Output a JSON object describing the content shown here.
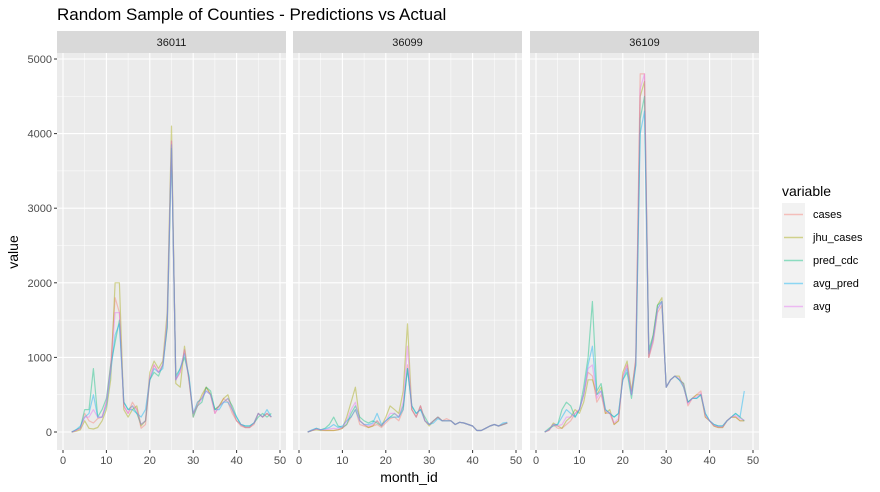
{
  "chart_data": {
    "type": "line",
    "title": "Random Sample of Counties - Predictions vs Actual",
    "xlabel": "month_id",
    "ylabel": "value",
    "xlim": [
      0,
      50
    ],
    "ylim": [
      0,
      5000
    ],
    "x_ticks": [
      "0",
      "10",
      "20",
      "30",
      "40",
      "50"
    ],
    "y_ticks": [
      "0",
      "1000",
      "2000",
      "3000",
      "4000",
      "5000"
    ],
    "x_tick_values": [
      0,
      10,
      20,
      30,
      40,
      50
    ],
    "y_tick_values": [
      0,
      1000,
      2000,
      3000,
      4000,
      5000
    ],
    "grid": true,
    "legend_position": "right",
    "legend_title": "variable",
    "series_styles": [
      {
        "name": "cases",
        "color": "#F8766D"
      },
      {
        "name": "jhu_cases",
        "color": "#A3A500"
      },
      {
        "name": "pred_cdc",
        "color": "#00BF7D"
      },
      {
        "name": "avg_pred",
        "color": "#00B0F6"
      },
      {
        "name": "avg",
        "color": "#E76BF3"
      }
    ],
    "panels": [
      {
        "label": "36011",
        "x": [
          2,
          3,
          4,
          5,
          6,
          7,
          8,
          9,
          10,
          11,
          12,
          13,
          14,
          15,
          16,
          17,
          18,
          19,
          20,
          21,
          22,
          23,
          24,
          25,
          26,
          27,
          28,
          29,
          30,
          31,
          32,
          33,
          34,
          35,
          36,
          37,
          38,
          39,
          40,
          41,
          42,
          43,
          44,
          45,
          46,
          47,
          48
        ],
        "series": [
          {
            "name": "cases",
            "values": [
              0,
              20,
              50,
              250,
              150,
              120,
              180,
              200,
              400,
              900,
              1800,
              1600,
              350,
              250,
              400,
              300,
              50,
              100,
              700,
              900,
              800,
              900,
              1400,
              3900,
              700,
              800,
              1100,
              700,
              200,
              400,
              450,
              600,
              500,
              250,
              350,
              450,
              400,
              250,
              150,
              80,
              60,
              60,
              100,
              250,
              200,
              250,
              200
            ]
          },
          {
            "name": "jhu_cases",
            "values": [
              0,
              10,
              30,
              150,
              50,
              40,
              60,
              150,
              300,
              700,
              2000,
              2000,
              300,
              200,
              300,
              350,
              80,
              150,
              800,
              950,
              850,
              950,
              1600,
              4100,
              650,
              600,
              1150,
              700,
              250,
              350,
              500,
              600,
              500,
              300,
              350,
              450,
              500,
              300,
              150,
              100,
              60,
              60,
              120,
              250,
              200,
              250,
              200
            ]
          },
          {
            "name": "pred_cdc",
            "values": [
              0,
              30,
              60,
              300,
              300,
              850,
              200,
              300,
              450,
              900,
              1200,
              1500,
              400,
              300,
              350,
              250,
              100,
              150,
              700,
              800,
              750,
              900,
              1400,
              3800,
              750,
              850,
              1000,
              750,
              200,
              350,
              400,
              600,
              550,
              300,
              350,
              400,
              450,
              350,
              200,
              100,
              80,
              80,
              120,
              200,
              250,
              200,
              250
            ]
          },
          {
            "name": "avg_pred",
            "values": [
              0,
              30,
              80,
              200,
              250,
              500,
              200,
              200,
              350,
              800,
              1300,
              1450,
              400,
              300,
              300,
              250,
              200,
              300,
              700,
              850,
              800,
              850,
              1450,
              3850,
              700,
              850,
              1050,
              750,
              250,
              400,
              450,
              550,
              500,
              300,
              300,
              400,
              400,
              300,
              200,
              100,
              80,
              80,
              120,
              250,
              200,
              300,
              200
            ]
          },
          {
            "name": "avg",
            "values": [
              0,
              20,
              50,
              200,
              200,
              300,
              200,
              200,
              400,
              850,
              1600,
              1600,
              350,
              250,
              350,
              300,
              100,
              150,
              750,
              900,
              800,
              900,
              1500,
              3900,
              700,
              800,
              1100,
              700,
              250,
              350,
              450,
              550,
              500,
              250,
              350,
              400,
              450,
              300,
              150,
              100,
              60,
              60,
              120,
              250,
              200,
              250,
              200
            ]
          }
        ]
      },
      {
        "label": "36099",
        "x": [
          2,
          3,
          4,
          5,
          6,
          7,
          8,
          9,
          10,
          11,
          12,
          13,
          14,
          15,
          16,
          17,
          18,
          19,
          20,
          21,
          22,
          23,
          24,
          25,
          26,
          27,
          28,
          29,
          30,
          31,
          32,
          33,
          34,
          35,
          36,
          37,
          38,
          39,
          40,
          41,
          42,
          43,
          44,
          45,
          46,
          47,
          48
        ],
        "series": [
          {
            "name": "cases",
            "values": [
              0,
              20,
              40,
              30,
              20,
              20,
              20,
              30,
              50,
              100,
              200,
              300,
              100,
              80,
              60,
              80,
              100,
              60,
              120,
              180,
              200,
              150,
              300,
              900,
              300,
              200,
              350,
              150,
              100,
              150,
              200,
              150,
              180,
              150,
              100,
              130,
              120,
              100,
              80,
              20,
              20,
              50,
              80,
              100,
              80,
              100,
              120
            ]
          },
          {
            "name": "jhu_cases",
            "values": [
              0,
              20,
              30,
              20,
              20,
              20,
              20,
              30,
              50,
              200,
              400,
              600,
              150,
              100,
              60,
              80,
              150,
              80,
              200,
              350,
              300,
              250,
              550,
              1450,
              300,
              200,
              350,
              150,
              80,
              150,
              200,
              150,
              150,
              150,
              100,
              130,
              120,
              100,
              80,
              20,
              20,
              50,
              80,
              100,
              80,
              100,
              120
            ]
          },
          {
            "name": "pred_cdc",
            "values": [
              0,
              20,
              50,
              30,
              50,
              100,
              200,
              80,
              60,
              100,
              250,
              350,
              200,
              150,
              120,
              150,
              120,
              80,
              150,
              200,
              250,
              200,
              350,
              850,
              350,
              250,
              300,
              200,
              100,
              150,
              200,
              150,
              150,
              150,
              100,
              130,
              120,
              100,
              80,
              20,
              20,
              50,
              80,
              100,
              80,
              100,
              120
            ]
          },
          {
            "name": "avg_pred",
            "values": [
              0,
              30,
              50,
              30,
              40,
              60,
              100,
              60,
              80,
              150,
              200,
              300,
              150,
              100,
              100,
              120,
              250,
              100,
              150,
              200,
              200,
              200,
              300,
              850,
              350,
              250,
              300,
              150,
              100,
              120,
              180,
              150,
              150,
              150,
              100,
              130,
              120,
              100,
              80,
              20,
              20,
              50,
              80,
              100,
              80,
              120,
              130
            ]
          },
          {
            "name": "avg",
            "values": [
              0,
              20,
              40,
              30,
              30,
              40,
              50,
              40,
              60,
              150,
              300,
              400,
              150,
              100,
              80,
              100,
              150,
              80,
              150,
              250,
              250,
              200,
              400,
              1150,
              300,
              200,
              350,
              150,
              100,
              150,
              200,
              150,
              150,
              150,
              100,
              130,
              120,
              100,
              80,
              20,
              20,
              50,
              80,
              100,
              80,
              100,
              120
            ]
          }
        ]
      },
      {
        "label": "36109",
        "x": [
          2,
          3,
          4,
          5,
          6,
          7,
          8,
          9,
          10,
          11,
          12,
          13,
          14,
          15,
          16,
          17,
          18,
          19,
          20,
          21,
          22,
          23,
          24,
          25,
          26,
          27,
          28,
          29,
          30,
          31,
          32,
          33,
          34,
          35,
          36,
          37,
          38,
          39,
          40,
          41,
          42,
          43,
          44,
          45,
          46,
          47,
          48
        ],
        "series": [
          {
            "name": "cases",
            "values": [
              0,
              20,
              100,
              50,
              50,
              100,
              150,
              250,
              300,
              500,
              800,
              750,
              400,
              500,
              250,
              250,
              100,
              150,
              750,
              900,
              500,
              1000,
              4800,
              4800,
              1000,
              1200,
              1600,
              1700,
              600,
              700,
              750,
              700,
              650,
              350,
              450,
              500,
              550,
              200,
              150,
              80,
              60,
              60,
              150,
              200,
              200,
              150,
              150
            ]
          },
          {
            "name": "jhu_cases",
            "values": [
              0,
              30,
              120,
              80,
              50,
              150,
              200,
              300,
              250,
              400,
              700,
              700,
              500,
              600,
              250,
              300,
              100,
              150,
              800,
              950,
              550,
              950,
              4500,
              4700,
              1000,
              1300,
              1700,
              1800,
              600,
              700,
              750,
              750,
              600,
              400,
              450,
              500,
              500,
              200,
              150,
              80,
              60,
              60,
              150,
              200,
              200,
              150,
              150
            ]
          },
          {
            "name": "pred_cdc",
            "values": [
              0,
              50,
              80,
              100,
              300,
              400,
              350,
              200,
              300,
              600,
              1000,
              1750,
              550,
              650,
              300,
              250,
              200,
              250,
              700,
              800,
              450,
              900,
              4200,
              4500,
              1100,
              1300,
              1700,
              1750,
              600,
              700,
              750,
              700,
              650,
              400,
              450,
              450,
              500,
              250,
              150,
              100,
              80,
              80,
              150,
              200,
              250,
              200,
              150
            ]
          },
          {
            "name": "avg_pred",
            "values": [
              0,
              30,
              100,
              100,
              200,
              300,
              250,
              200,
              300,
              500,
              900,
              1150,
              500,
              550,
              300,
              250,
              200,
              250,
              700,
              850,
              500,
              900,
              4000,
              4300,
              1050,
              1250,
              1650,
              1750,
              600,
              700,
              750,
              700,
              600,
              400,
              450,
              450,
              500,
              250,
              150,
              100,
              80,
              80,
              150,
              200,
              250,
              200,
              550
            ]
          },
          {
            "name": "avg",
            "values": [
              0,
              30,
              100,
              80,
              100,
              200,
              200,
              250,
              300,
              500,
              850,
              900,
              450,
              550,
              280,
              260,
              120,
              180,
              750,
              900,
              500,
              950,
              4600,
              4800,
              1000,
              1250,
              1650,
              1750,
              600,
              700,
              750,
              720,
              620,
              380,
              450,
              470,
              520,
              220,
              150,
              90,
              70,
              70,
              150,
              200,
              220,
              180,
              160
            ]
          }
        ]
      }
    ]
  }
}
